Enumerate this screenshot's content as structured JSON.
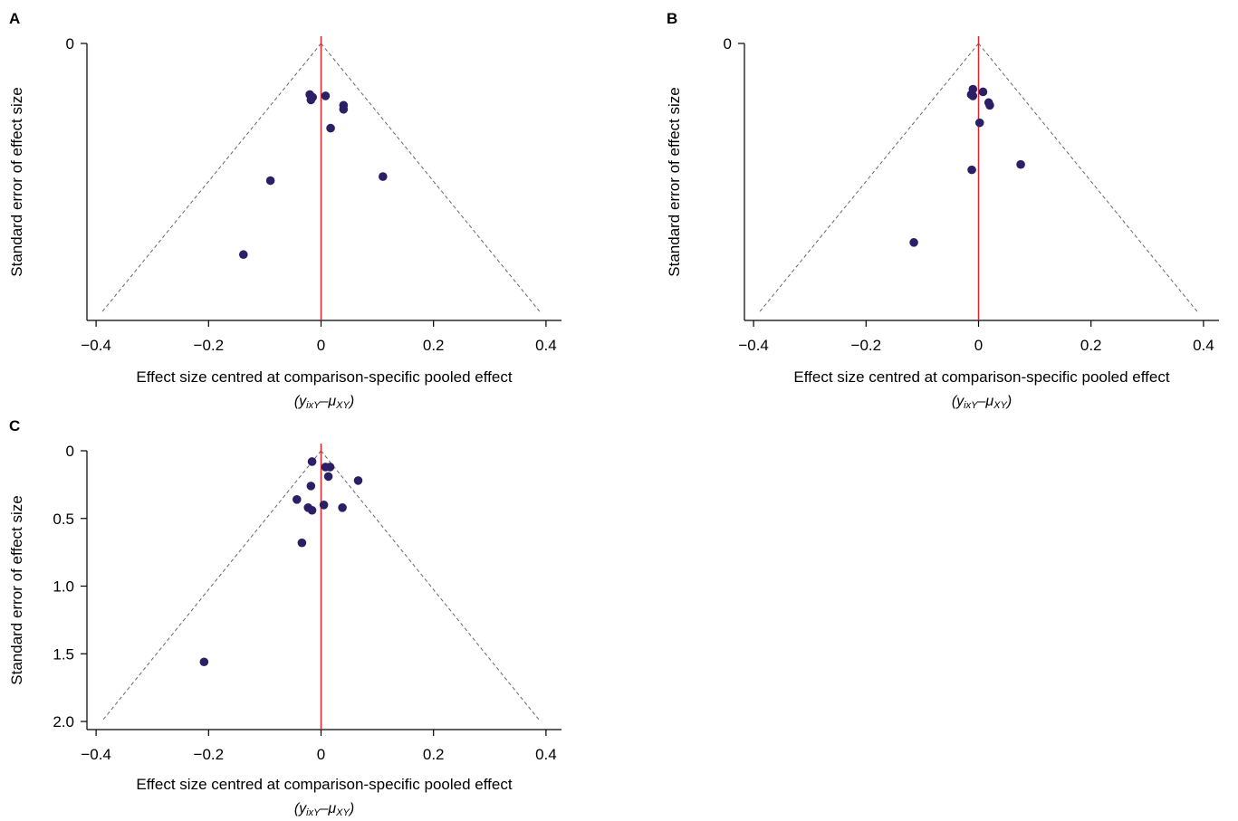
{
  "chart_data": [
    {
      "panel": "A",
      "type": "scatter",
      "xlabel": "Effect size centred at comparison-specific pooled effect",
      "xlabel_sub": {
        "open": "(",
        "y": "y",
        "y_sub": "ixY",
        "dash": "–",
        "mu": "μ",
        "mu_sub": "XY",
        "close": ")"
      },
      "ylabel": "Standard error of effect size",
      "x_ticks": [
        "−0.4",
        "−0.2",
        "0",
        "0.2",
        "0.4"
      ],
      "x_tick_values": [
        -0.4,
        -0.2,
        0,
        0.2,
        0.4
      ],
      "y_ticks": [
        "0"
      ],
      "y_tick_values": [
        0
      ],
      "xlim": [
        -0.42,
        0.42
      ],
      "ylim": [
        0,
        2.06
      ],
      "y_reversed": true,
      "funnel_apex": [
        0,
        0
      ],
      "funnel_base_x": [
        -0.39,
        0.39
      ],
      "funnel_base_y": 2.0,
      "reference_line_x": 0,
      "colors": {
        "points": "#2d1f66",
        "reference_line": "#e0242b",
        "funnel": "#666666"
      },
      "points": [
        {
          "x": -0.02,
          "y": 0.38
        },
        {
          "x": -0.015,
          "y": 0.4
        },
        {
          "x": -0.018,
          "y": 0.42
        },
        {
          "x": 0.008,
          "y": 0.39
        },
        {
          "x": 0.04,
          "y": 0.46
        },
        {
          "x": 0.04,
          "y": 0.49
        },
        {
          "x": 0.017,
          "y": 0.63
        },
        {
          "x": -0.09,
          "y": 1.02
        },
        {
          "x": 0.11,
          "y": 0.99
        },
        {
          "x": -0.138,
          "y": 1.57
        }
      ]
    },
    {
      "panel": "B",
      "type": "scatter",
      "xlabel": "Effect size centred at comparison-specific pooled effect",
      "xlabel_sub": {
        "open": "(",
        "y": "y",
        "y_sub": "ixY",
        "dash": "–",
        "mu": "μ",
        "mu_sub": "XY",
        "close": ")"
      },
      "ylabel": "Standard error of effect size",
      "x_ticks": [
        "−0.4",
        "−0.2",
        "0",
        "0.2",
        "0.4"
      ],
      "x_tick_values": [
        -0.4,
        -0.2,
        0,
        0.2,
        0.4
      ],
      "y_ticks": [
        "0"
      ],
      "y_tick_values": [
        0
      ],
      "xlim": [
        -0.42,
        0.42
      ],
      "ylim": [
        0,
        2.06
      ],
      "y_reversed": true,
      "funnel_apex": [
        0,
        0
      ],
      "funnel_base_x": [
        -0.39,
        0.39
      ],
      "funnel_base_y": 2.0,
      "reference_line_x": 0,
      "colors": {
        "points": "#2d1f66",
        "reference_line": "#e0242b",
        "funnel": "#666666"
      },
      "points": [
        {
          "x": -0.01,
          "y": 0.34
        },
        {
          "x": -0.013,
          "y": 0.38
        },
        {
          "x": -0.01,
          "y": 0.39
        },
        {
          "x": 0.008,
          "y": 0.36
        },
        {
          "x": 0.018,
          "y": 0.44
        },
        {
          "x": 0.02,
          "y": 0.46
        },
        {
          "x": 0.002,
          "y": 0.59
        },
        {
          "x": -0.012,
          "y": 0.94
        },
        {
          "x": 0.075,
          "y": 0.9
        },
        {
          "x": -0.115,
          "y": 1.48
        }
      ]
    },
    {
      "panel": "C",
      "type": "scatter",
      "xlabel": "Effect size centred at comparison-specific pooled effect",
      "xlabel_sub": {
        "open": "(",
        "y": "y",
        "y_sub": "ixY",
        "dash": "–",
        "mu": "μ",
        "mu_sub": "XY",
        "close": ")"
      },
      "ylabel": "Standard error of effect size",
      "x_ticks": [
        "−0.4",
        "−0.2",
        "0",
        "0.2",
        "0.4"
      ],
      "x_tick_values": [
        -0.4,
        -0.2,
        0,
        0.2,
        0.4
      ],
      "y_ticks": [
        "0",
        "0.5",
        "1.0",
        "1.5",
        "2.0"
      ],
      "y_tick_values": [
        0,
        0.5,
        1.0,
        1.5,
        2.0
      ],
      "xlim": [
        -0.42,
        0.42
      ],
      "ylim": [
        0,
        2.06
      ],
      "y_reversed": true,
      "funnel_apex": [
        0,
        0
      ],
      "funnel_base_x": [
        -0.39,
        0.39
      ],
      "funnel_base_y": 2.0,
      "reference_line_x": 0,
      "colors": {
        "points": "#2d1f66",
        "reference_line": "#e0242b",
        "funnel": "#666666"
      },
      "points": [
        {
          "x": -0.016,
          "y": 0.08
        },
        {
          "x": 0.008,
          "y": 0.12
        },
        {
          "x": 0.016,
          "y": 0.12
        },
        {
          "x": 0.013,
          "y": 0.19
        },
        {
          "x": 0.066,
          "y": 0.22
        },
        {
          "x": -0.018,
          "y": 0.26
        },
        {
          "x": -0.043,
          "y": 0.36
        },
        {
          "x": -0.023,
          "y": 0.42
        },
        {
          "x": -0.016,
          "y": 0.44
        },
        {
          "x": 0.005,
          "y": 0.4
        },
        {
          "x": 0.038,
          "y": 0.42
        },
        {
          "x": -0.034,
          "y": 0.68
        },
        {
          "x": -0.208,
          "y": 1.56
        }
      ]
    }
  ]
}
